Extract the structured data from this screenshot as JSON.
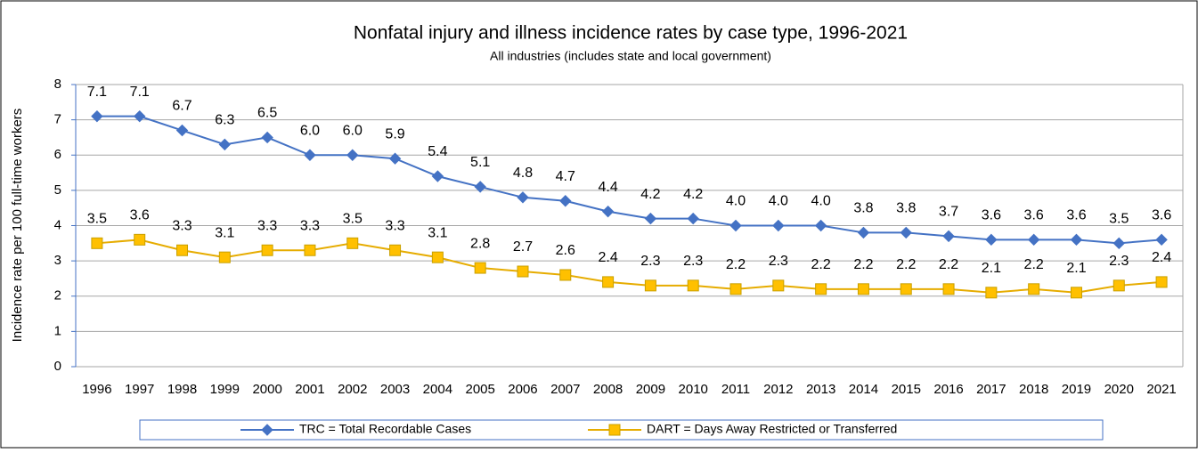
{
  "chart_data": {
    "type": "line",
    "title": "Nonfatal injury and illness incidence rates by case type, 1996-2021",
    "subtitle": "All industries (includes state and local government)",
    "y_label": "Incidence rate per 100 full-time workers",
    "categories": [
      "1996",
      "1997",
      "1998",
      "1999",
      "2000",
      "2001",
      "2002",
      "2003",
      "2004",
      "2005",
      "2006",
      "2007",
      "2008",
      "2009",
      "2010",
      "2011",
      "2012",
      "2013",
      "2014",
      "2015",
      "2016",
      "2017",
      "2018",
      "2019",
      "2020",
      "2021"
    ],
    "series": [
      {
        "name": "TRC = Total Recordable Cases",
        "color": "#4472c4",
        "marker": "diamond",
        "values": [
          7.1,
          7.1,
          6.7,
          6.3,
          6.5,
          6.0,
          6.0,
          5.9,
          5.4,
          5.1,
          4.8,
          4.7,
          4.4,
          4.2,
          4.2,
          4.0,
          4.0,
          4.0,
          3.8,
          3.8,
          3.7,
          3.6,
          3.6,
          3.6,
          3.5,
          3.6
        ],
        "value_labels": [
          "7.1",
          "7.1",
          "6.7",
          "6.3",
          "6.5",
          "6.0",
          "6.0",
          "5.9",
          "5.4",
          "5.1",
          "4.8",
          "4.7",
          "4.4",
          "4.2",
          "4.2",
          "4.0",
          "4.0",
          "4.0",
          "3.8",
          "3.8",
          "3.7",
          "3.6",
          "3.6",
          "3.6",
          "3.5",
          "3.6"
        ]
      },
      {
        "name": "DART = Days Away Restricted or Transferred",
        "color": "#ffc000",
        "marker": "square",
        "values": [
          3.5,
          3.6,
          3.3,
          3.1,
          3.3,
          3.3,
          3.5,
          3.3,
          3.1,
          2.8,
          2.7,
          2.6,
          2.4,
          2.3,
          2.3,
          2.2,
          2.3,
          2.2,
          2.2,
          2.2,
          2.2,
          2.1,
          2.2,
          2.1,
          2.3,
          2.4
        ],
        "value_labels": [
          "3.5",
          "3.6",
          "3.3",
          "3.1",
          "3.3",
          "3.3",
          "3.5",
          "3.3",
          "3.1",
          "2.8",
          "2.7",
          "2.6",
          "2.4",
          "2.3",
          "2.3",
          "2.2",
          "2.3",
          "2.2",
          "2.2",
          "2.2",
          "2.2",
          "2.1",
          "2.2",
          "2.1",
          "2.3",
          "2.4"
        ]
      }
    ],
    "ylim": [
      0,
      8
    ],
    "yticks": [
      0,
      1,
      2,
      3,
      4,
      5,
      6,
      7,
      8
    ],
    "grid": true,
    "legend": "bottom"
  }
}
